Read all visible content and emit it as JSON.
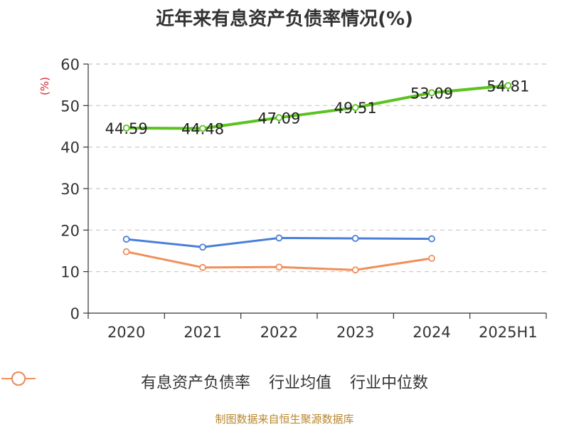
{
  "title": "近年来有息资产负债率情况(%)",
  "unit_label": "(%)",
  "footer": "制图数据来自恒生聚源数据库",
  "colors": {
    "main": "#5bc21f",
    "avg": "#4a7fd9",
    "median": "#f28e5a",
    "grid": "#c8c8c8",
    "axis": "#333333"
  },
  "chart_data": {
    "type": "line",
    "categories": [
      "2020",
      "2021",
      "2022",
      "2023",
      "2024",
      "2025H1"
    ],
    "ylim": [
      0,
      60
    ],
    "yticks": [
      0,
      10,
      20,
      30,
      40,
      50,
      60
    ],
    "grid": true,
    "legend_position": "bottom",
    "series": [
      {
        "name": "有息资产负债率",
        "key": "main",
        "values": [
          44.59,
          44.48,
          47.09,
          49.51,
          53.09,
          54.81
        ],
        "labels": [
          "44.59",
          "44.48",
          "47.09",
          "49.51",
          "53.09",
          "54.81"
        ]
      },
      {
        "name": "行业均值",
        "key": "avg",
        "values": [
          17.8,
          15.9,
          18.1,
          18.0,
          17.9,
          null
        ]
      },
      {
        "name": "行业中位数",
        "key": "median",
        "values": [
          14.8,
          11.0,
          11.1,
          10.4,
          13.2,
          null
        ]
      }
    ]
  }
}
